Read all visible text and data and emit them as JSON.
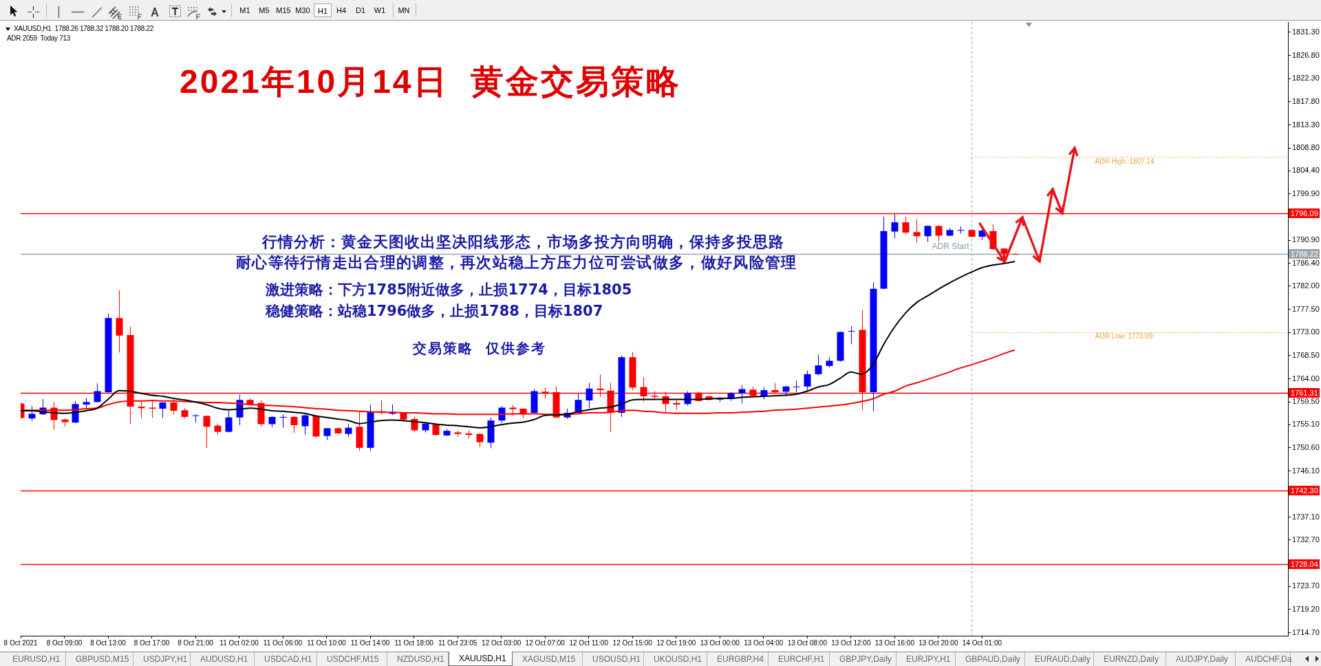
{
  "chart_data": {
    "type": "candlestick",
    "title": "2021年10月14日  黄金交易策略",
    "categories": [
      "8 Oct 2021",
      null,
      null,
      null,
      "8 Oct 09:00",
      null,
      null,
      null,
      "8 Oct 13:00",
      null,
      null,
      null,
      "8 Oct 17:00",
      null,
      null,
      null,
      "8 Oct 21:00",
      null,
      null,
      null,
      "11 Oct 02:00",
      null,
      null,
      null,
      "11 Oct 06:00",
      null,
      null,
      null,
      "11 Oct 10:00",
      null,
      null,
      null,
      "11 Oct 14:00",
      null,
      null,
      null,
      "11 Oct 18:00",
      null,
      null,
      null,
      "11 Oct 23:05",
      null,
      null,
      null,
      "12 Oct 03:00",
      null,
      null,
      null,
      "12 Oct 07:00",
      null,
      null,
      null,
      "12 Oct 11:00",
      null,
      null,
      null,
      "12 Oct 15:00",
      null,
      null,
      null,
      "12 Oct 19:00",
      null,
      null,
      null,
      "13 Oct 00:00",
      null,
      null,
      null,
      "13 Oct 04:00",
      null,
      null,
      null,
      "13 Oct 08:00",
      null,
      null,
      null,
      "13 Oct 12:00",
      null,
      null,
      null,
      "13 Oct 16:00",
      null,
      null,
      null,
      "13 Oct 20:00",
      null,
      null,
      null,
      "14 Oct 01:00",
      null,
      null,
      null,
      null,
      null,
      null,
      null,
      null,
      null,
      null,
      null,
      null,
      null,
      null,
      null,
      null,
      null,
      null,
      null,
      null,
      null,
      null,
      null,
      null,
      null,
      null,
      null,
      null
    ],
    "ohlc": [
      [
        1759.2,
        1759.4,
        1756.2,
        1756.4
      ],
      [
        1756.3,
        1758.7,
        1755.8,
        1757.2
      ],
      [
        1757.1,
        1760.1,
        1757.0,
        1758.4
      ],
      [
        1758.4,
        1759.5,
        1754.1,
        1756.0
      ],
      [
        1756.1,
        1756.3,
        1754.7,
        1755.6
      ],
      [
        1755.5,
        1759.7,
        1755.4,
        1759.1
      ],
      [
        1759.0,
        1760.3,
        1758.3,
        1759.5
      ],
      [
        1759.5,
        1763.1,
        1759.4,
        1761.6
      ],
      [
        1761.4,
        1776.7,
        1761.3,
        1775.8
      ],
      [
        1775.8,
        1781.2,
        1769.1,
        1772.4
      ],
      [
        1772.5,
        1774.1,
        1755.2,
        1758.6
      ],
      [
        1758.6,
        1759.8,
        1756.4,
        1758.3
      ],
      [
        1758.4,
        1759.8,
        1756.4,
        1758.2
      ],
      [
        1758.2,
        1759.5,
        1756.4,
        1759.4
      ],
      [
        1759.4,
        1760.0,
        1757.1,
        1757.8
      ],
      [
        1757.9,
        1758.3,
        1756.3,
        1756.6
      ],
      [
        1756.8,
        1757.1,
        1755.5,
        1756.9
      ],
      [
        1756.8,
        1756.9,
        1750.6,
        1754.7
      ],
      [
        1754.9,
        1755.3,
        1753.2,
        1753.7
      ],
      [
        1753.7,
        1757.8,
        1753.6,
        1756.5
      ],
      [
        1756.5,
        1760.9,
        1755.0,
        1759.9
      ],
      [
        1759.9,
        1760.2,
        1758.9,
        1759.0
      ],
      [
        1759.3,
        1759.8,
        1754.7,
        1755.2
      ],
      [
        1755.2,
        1756.7,
        1754.6,
        1756.6
      ],
      [
        1756.5,
        1757.1,
        1754.5,
        1756.6
      ],
      [
        1756.6,
        1756.8,
        1753.5,
        1755.0
      ],
      [
        1754.8,
        1757.1,
        1753.2,
        1756.9
      ],
      [
        1756.8,
        1756.9,
        1752.6,
        1752.8
      ],
      [
        1752.9,
        1754.4,
        1752.1,
        1754.4
      ],
      [
        1754.4,
        1754.6,
        1753.3,
        1753.4
      ],
      [
        1753.3,
        1755.3,
        1752.7,
        1754.5
      ],
      [
        1754.7,
        1757.6,
        1750.0,
        1750.6
      ],
      [
        1750.6,
        1759.0,
        1750.0,
        1757.6
      ],
      [
        1757.7,
        1759.8,
        1757.1,
        1757.5
      ],
      [
        1757.2,
        1759.0,
        1757.0,
        1757.4
      ],
      [
        1757.4,
        1757.5,
        1755.7,
        1756.1
      ],
      [
        1756.2,
        1756.6,
        1753.7,
        1754.0
      ],
      [
        1754.0,
        1755.6,
        1753.6,
        1755.3
      ],
      [
        1755.1,
        1755.4,
        1752.9,
        1753.1
      ],
      [
        1753.0,
        1754.2,
        1752.9,
        1753.9
      ],
      [
        1753.6,
        1753.9,
        1752.8,
        1753.3
      ],
      [
        1753.4,
        1754.0,
        1752.4,
        1753.1
      ],
      [
        1753.3,
        1753.4,
        1750.8,
        1751.7
      ],
      [
        1751.6,
        1756.5,
        1750.5,
        1755.9
      ],
      [
        1755.9,
        1758.7,
        1755.4,
        1758.4
      ],
      [
        1758.4,
        1758.9,
        1756.9,
        1758.1
      ],
      [
        1758.2,
        1758.3,
        1756.4,
        1757.1
      ],
      [
        1757.4,
        1762.0,
        1757.3,
        1761.6
      ],
      [
        1761.5,
        1762.3,
        1760.1,
        1761.1
      ],
      [
        1761.4,
        1762.5,
        1756.4,
        1756.5
      ],
      [
        1756.5,
        1758.2,
        1756.2,
        1757.4
      ],
      [
        1757.4,
        1761.2,
        1757.3,
        1759.9
      ],
      [
        1759.8,
        1763.2,
        1758.3,
        1762.1
      ],
      [
        1762.1,
        1764.8,
        1760.5,
        1761.8
      ],
      [
        1761.7,
        1763.2,
        1753.7,
        1757.4
      ],
      [
        1757.4,
        1768.5,
        1756.6,
        1768.2
      ],
      [
        1768.2,
        1769.2,
        1761.8,
        1762.3
      ],
      [
        1762.4,
        1764.3,
        1759.6,
        1760.6
      ],
      [
        1760.7,
        1761.6,
        1759.8,
        1760.5
      ],
      [
        1760.6,
        1761.4,
        1757.6,
        1759.1
      ],
      [
        1759.3,
        1759.8,
        1758.0,
        1759.0
      ],
      [
        1759.1,
        1761.6,
        1758.8,
        1761.2
      ],
      [
        1761.3,
        1761.4,
        1759.6,
        1759.7
      ],
      [
        1760.6,
        1760.7,
        1759.8,
        1759.9
      ],
      [
        1760.0,
        1760.5,
        1759.5,
        1760.1
      ],
      [
        1760.1,
        1761.4,
        1759.7,
        1761.2
      ],
      [
        1761.2,
        1762.8,
        1759.2,
        1762.0
      ],
      [
        1761.9,
        1762.5,
        1760.6,
        1760.7
      ],
      [
        1760.6,
        1762.4,
        1760.0,
        1761.8
      ],
      [
        1761.8,
        1763.2,
        1761.2,
        1761.4
      ],
      [
        1761.5,
        1762.7,
        1760.6,
        1762.5
      ],
      [
        1762.4,
        1763.6,
        1761.4,
        1762.5
      ],
      [
        1762.5,
        1765.6,
        1761.6,
        1764.9
      ],
      [
        1764.9,
        1768.7,
        1764.7,
        1766.6
      ],
      [
        1766.5,
        1768.2,
        1766.2,
        1767.5
      ],
      [
        1767.5,
        1773.2,
        1767.3,
        1773.1
      ],
      [
        1773.2,
        1774.2,
        1770.7,
        1773.3
      ],
      [
        1773.5,
        1777.3,
        1758.0,
        1761.4
      ],
      [
        1761.4,
        1782.7,
        1757.7,
        1781.5
      ],
      [
        1781.5,
        1795.5,
        1781.4,
        1792.7
      ],
      [
        1792.6,
        1796.0,
        1791.3,
        1794.4
      ],
      [
        1794.4,
        1795.5,
        1792.1,
        1792.4
      ],
      [
        1792.5,
        1795.0,
        1790.4,
        1791.7
      ],
      [
        1791.7,
        1793.8,
        1790.6,
        1793.7
      ],
      [
        1793.7,
        1793.8,
        1790.7,
        1791.8
      ],
      [
        1791.8,
        1793.3,
        1791.7,
        1792.9
      ],
      [
        1792.8,
        1793.6,
        1792.2,
        1792.9
      ],
      [
        1792.9,
        1793.0,
        1791.5,
        1791.6
      ],
      [
        1791.6,
        1793.0,
        1791.0,
        1792.8
      ],
      [
        1792.7,
        1794.0,
        1789.0,
        1789.2
      ],
      [
        1789.3,
        1789.4,
        1786.7,
        1788.3
      ],
      [
        1788.26,
        1788.32,
        1788.2,
        1788.22
      ],
      null,
      null,
      null,
      null,
      null,
      null,
      null,
      null,
      null,
      null,
      null,
      null,
      null,
      null,
      null,
      null,
      null,
      null,
      null,
      null,
      null,
      null,
      null,
      null,
      null
    ],
    "colors": [
      "#ff0000",
      "#0000ff",
      "#0000ff",
      "#ff0000",
      "#ff0000",
      "#0000ff",
      "#0000ff",
      "#0000ff",
      "#0000ff",
      "#ff0000",
      "#ff0000",
      "#ff0000",
      "#ff0000",
      "#0000ff",
      "#ff0000",
      "#ff0000",
      "#0000ff",
      "#ff0000",
      "#ff0000",
      "#0000ff",
      "#0000ff",
      "#ff0000",
      "#ff0000",
      "#0000ff",
      "#0000ff",
      "#ff0000",
      "#0000ff",
      "#ff0000",
      "#0000ff",
      "#ff0000",
      "#0000ff",
      "#ff0000",
      "#0000ff",
      "#ff0000",
      "#0000ff",
      "#ff0000",
      "#ff0000",
      "#0000ff",
      "#ff0000",
      "#0000ff",
      "#ff0000",
      "#ff0000",
      "#ff0000",
      "#0000ff",
      "#0000ff",
      "#ff0000",
      "#ff0000",
      "#0000ff",
      "#ff0000",
      "#ff0000",
      "#0000ff",
      "#0000ff",
      "#0000ff",
      "#ff0000",
      "#ff0000",
      "#0000ff",
      "#ff0000",
      "#ff0000",
      "#ff0000",
      "#ff0000",
      "#ff0000",
      "#0000ff",
      "#ff0000",
      "#ff0000",
      "#0000ff",
      "#0000ff",
      "#0000ff",
      "#ff0000",
      "#0000ff",
      "#ff0000",
      "#0000ff",
      "#0000ff",
      "#0000ff",
      "#0000ff",
      "#0000ff",
      "#0000ff",
      "#0000ff",
      "#ff0000",
      "#0000ff",
      "#0000ff",
      "#0000ff",
      "#ff0000",
      "#ff0000",
      "#0000ff",
      "#ff0000",
      "#0000ff",
      "#0000ff",
      "#ff0000",
      "#0000ff",
      "#ff0000",
      "#ff0000",
      "#ff0000",
      null,
      null,
      null,
      null,
      null,
      null,
      null,
      null,
      null,
      null,
      null,
      null,
      null,
      null,
      null,
      null,
      null,
      null,
      null,
      null,
      null,
      null,
      null,
      null,
      null
    ],
    "series": [
      {
        "type": "line",
        "color": "#000000",
        "values": [
          1757.8,
          1757.8,
          1757.6,
          1757.4,
          1757.3,
          1757.5,
          1757.8,
          1758.3,
          1760.0,
          1761.7,
          1761.6,
          1761.2,
          1760.8,
          1760.6,
          1760.2,
          1759.9,
          1759.5,
          1759.0,
          1758.3,
          1758.0,
          1758.1,
          1758.3,
          1758.1,
          1757.8,
          1757.7,
          1757.5,
          1757.3,
          1756.8,
          1756.5,
          1756.2,
          1755.9,
          1755.3,
          1755.6,
          1755.9,
          1756.0,
          1755.9,
          1755.7,
          1755.5,
          1755.2,
          1755.0,
          1754.9,
          1754.7,
          1754.5,
          1754.7,
          1755.1,
          1755.4,
          1755.6,
          1756.1,
          1756.9,
          1757.0,
          1757.1,
          1757.6,
          1758.0,
          1758.3,
          1758.5,
          1759.1,
          1759.9,
          1760.0,
          1760.0,
          1760.0,
          1760.0,
          1760.0,
          1760.0,
          1760.1,
          1760.2,
          1760.2,
          1760.4,
          1760.5,
          1760.6,
          1760.7,
          1760.8,
          1761.0,
          1761.6,
          1762.4,
          1762.9,
          1764.1,
          1765.3,
          1764.9,
          1766.7,
          1770.7,
          1774.1,
          1776.8,
          1778.8,
          1780.1,
          1781.4,
          1782.6,
          1783.7,
          1784.7,
          1785.6,
          1786.1,
          1786.4,
          1786.8,
          null,
          null,
          null,
          null,
          null,
          null,
          null,
          null,
          null,
          null,
          null,
          null,
          null,
          null,
          null,
          null,
          null,
          null,
          null,
          null,
          null,
          null,
          null,
          null,
          null
        ]
      },
      {
        "type": "line",
        "color": "#ff0000",
        "values": [
          1757.9,
          1757.9,
          1757.9,
          1757.9,
          1757.9,
          1758.0,
          1758.2,
          1758.3,
          1759.0,
          1759.5,
          1759.7,
          1759.7,
          1759.8,
          1759.7,
          1759.7,
          1759.6,
          1759.5,
          1759.4,
          1759.4,
          1759.3,
          1759.2,
          1759.0,
          1758.9,
          1758.8,
          1758.7,
          1758.6,
          1758.4,
          1758.2,
          1758.1,
          1757.9,
          1757.8,
          1757.7,
          1757.6,
          1757.5,
          1757.5,
          1757.4,
          1757.4,
          1757.3,
          1757.2,
          1757.2,
          1757.1,
          1757.1,
          1757.1,
          1757.1,
          1757.1,
          1757.2,
          1757.2,
          1757.2,
          1757.1,
          1757.1,
          1757.1,
          1757.2,
          1757.4,
          1757.4,
          1757.5,
          1757.8,
          1757.9,
          1757.7,
          1757.6,
          1757.4,
          1757.3,
          1757.3,
          1757.3,
          1757.3,
          1757.4,
          1757.4,
          1757.5,
          1757.6,
          1757.7,
          1757.9,
          1758.0,
          1758.1,
          1758.3,
          1758.5,
          1758.7,
          1758.9,
          1759.2,
          1759.6,
          1760.1,
          1761.0,
          1761.6,
          1762.6,
          1763.2,
          1763.9,
          1764.6,
          1765.3,
          1766.1,
          1766.7,
          1767.4,
          1768.1,
          1768.9,
          1769.6,
          null,
          null,
          null,
          null,
          null,
          null,
          null,
          null,
          null,
          null,
          null,
          null,
          null,
          null,
          null,
          null,
          null,
          null,
          null,
          null,
          null,
          null,
          null,
          null,
          null
        ]
      }
    ],
    "ylim": [
      1714.1,
      1833.3
    ],
    "yticks": [
      {
        "value": 1831.3,
        "label": "1831.30"
      },
      {
        "value": 1826.8,
        "label": "1826.80"
      },
      {
        "value": 1822.3,
        "label": "1822.30"
      },
      {
        "value": 1817.8,
        "label": "1817.80"
      },
      {
        "value": 1813.3,
        "label": "1813.30"
      },
      {
        "value": 1808.8,
        "label": "1808.80"
      },
      {
        "value": 1804.4,
        "label": "1804.40"
      },
      {
        "value": 1799.9,
        "label": "1799.90"
      },
      {
        "value": 1795.4,
        "label": null
      },
      {
        "value": 1790.9,
        "label": "1790.90"
      },
      {
        "value": 1786.4,
        "label": "1786.40"
      },
      {
        "value": 1782.0,
        "label": "1782.00"
      },
      {
        "value": 1777.5,
        "label": "1777.50"
      },
      {
        "value": 1773.0,
        "label": "1773.00"
      },
      {
        "value": 1768.5,
        "label": "1768.50"
      },
      {
        "value": 1764.0,
        "label": "1764.00"
      },
      {
        "value": 1759.5,
        "label": "1759.50"
      },
      {
        "value": 1755.1,
        "label": "1755.10"
      },
      {
        "value": 1750.6,
        "label": "1750.60"
      },
      {
        "value": 1746.1,
        "label": "1746.10"
      },
      {
        "value": 1741.6,
        "label": null
      },
      {
        "value": 1737.1,
        "label": "1737.10"
      },
      {
        "value": 1732.7,
        "label": "1732.70"
      },
      {
        "value": 1728.2,
        "label": null
      },
      {
        "value": 1723.7,
        "label": "1723.70"
      },
      {
        "value": 1719.2,
        "label": "1719.20"
      },
      {
        "value": 1714.7,
        "label": "1714.70"
      }
    ],
    "ref_lines": [
      {
        "axis": "y",
        "value": 1796.09,
        "label": "1796.09",
        "color": "#ff0000",
        "line_style": "solid"
      },
      {
        "axis": "y",
        "value": 1788.22,
        "label": "1788.22",
        "color": "#9aa4ae",
        "line_style": "solid"
      },
      {
        "axis": "y",
        "value": 1761.31,
        "label": "1761.31",
        "color": "#ff0000",
        "line_style": "solid"
      },
      {
        "axis": "y",
        "value": 1742.3,
        "label": "1742.30",
        "color": "#ff0000",
        "line_style": "solid"
      },
      {
        "axis": "y",
        "value": 1728.04,
        "label": "1728.04",
        "color": "#ff0000",
        "line_style": "solid"
      },
      {
        "axis": "y",
        "value": 1807.14,
        "label": "ADR High: 1807.14",
        "color": "#e8a33c",
        "line_style": "dotted"
      },
      {
        "axis": "y",
        "value": 1773.09,
        "label": "ADR Low: 1773.09",
        "color": "#e8a33c",
        "line_style": "dotted"
      }
    ],
    "annotations": [
      "XAUUSD,H1  1788.26 1788.32 1788.20 1788.22",
      "ADR 2059  Today 713",
      "ADR Start",
      "行情分析：黄金天图收出坚决阳线形态，市场多投方向明确，保持多投思路",
      "耐心等待行情走出合理的调整，再次站稳上方压力位可尝试做多，做好风险管理",
      "激进策略：下方1785附近做多，止损1774，目标1805",
      "稳健策略：站稳1796做多，止损1788，目标1807",
      "交易策略  仅供参考",
      "M1",
      "M5",
      "M15",
      "M30",
      "H1",
      "H4",
      "D1",
      "W1",
      "MN",
      "EURUSD,H1",
      "GBPUSD,M15",
      "USDJPY,H1",
      "AUDUSD,H1",
      "USDCAD,H1",
      "USDCHF,M15",
      "NZDUSD,H1",
      "XAUUSD,H1",
      "XAGUSD,M15",
      "USOUSD,H1",
      "UKOUSD,H1",
      "EURGBP,H4",
      "EURCHF,H1",
      "GBPJPY,Daily",
      "EURJPY,H1",
      "GBPAUD,Daily",
      "EURAUD,Daily",
      "EURNZD,Daily",
      "AUDJPY,Daily",
      "AUDCHF,Da"
    ]
  }
}
